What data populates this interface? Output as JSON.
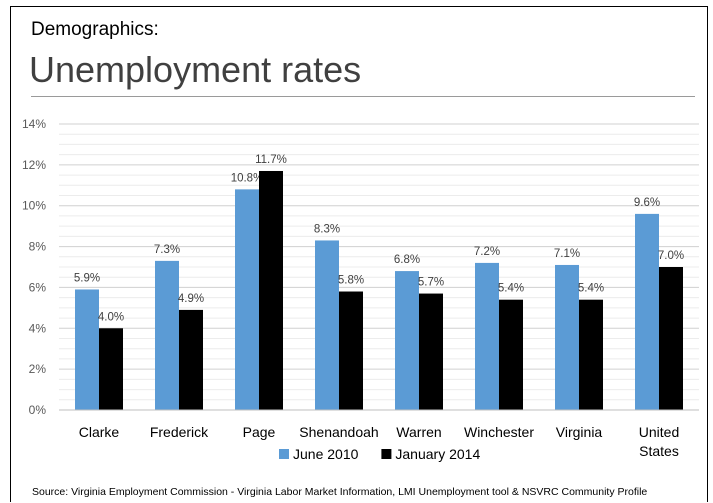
{
  "header": {
    "kicker": "Demographics:",
    "title": "Unemployment rates"
  },
  "chart_data": {
    "type": "bar",
    "categories": [
      "Clarke",
      "Frederick",
      "Page",
      "Shenandoah",
      "Warren",
      "Winchester",
      "Virginia",
      "United States"
    ],
    "series": [
      {
        "name": "June 2010",
        "color": "#5b9bd5",
        "values": [
          5.9,
          7.3,
          10.8,
          8.3,
          6.8,
          7.2,
          7.1,
          9.6
        ],
        "labels": [
          "5.9%",
          "7.3%",
          "10.8%",
          "8.3%",
          "6.8%",
          "7.2%",
          "7.1%",
          "9.6%"
        ]
      },
      {
        "name": "January 2014",
        "color": "#000000",
        "values": [
          4.0,
          4.9,
          11.7,
          5.8,
          5.7,
          5.4,
          5.4,
          7.0
        ],
        "labels": [
          "4.0%",
          "4.9%",
          "11.7%",
          "5.8%",
          "5.7%",
          "5.4%",
          "5.4%",
          "7.0%"
        ]
      }
    ],
    "yticks": [
      "0%",
      "2%",
      "4%",
      "6%",
      "8%",
      "10%",
      "12%",
      "14%"
    ],
    "ylim": [
      0,
      14
    ],
    "ytick_step": 2,
    "grid": true,
    "legend": "bottom"
  },
  "footer": {
    "source": "Source: Virginia Employment Commission - Virginia Labor Market Information, LMI Unemployment tool & NSVRC Community Profile"
  }
}
